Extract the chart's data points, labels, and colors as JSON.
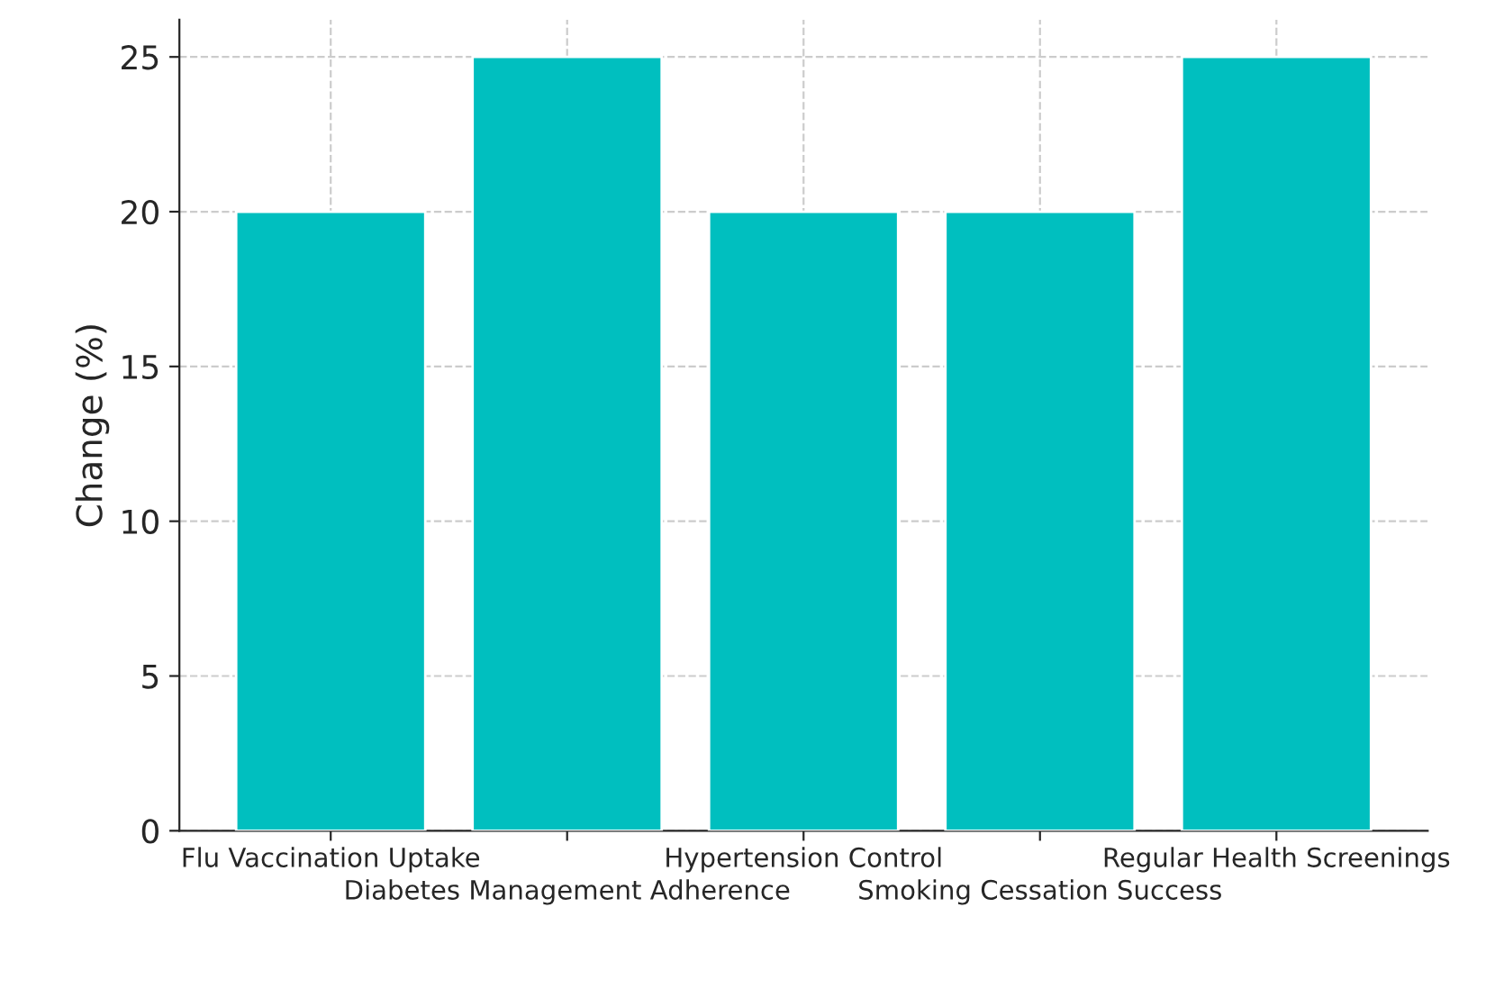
{
  "chart_data": {
    "type": "bar",
    "ylabel": "Change (%)",
    "categories": [
      "Flu Vaccination Uptake",
      "Diabetes Management Adherence",
      "Hypertension Control",
      "Smoking Cessation Success",
      "Regular Health Screenings"
    ],
    "values": [
      20,
      25,
      20,
      20,
      25
    ],
    "color": "#00bfbf",
    "ylim": [
      0,
      26.2
    ],
    "yticks": [
      0,
      5,
      10,
      15,
      20,
      25
    ],
    "grid": true
  }
}
